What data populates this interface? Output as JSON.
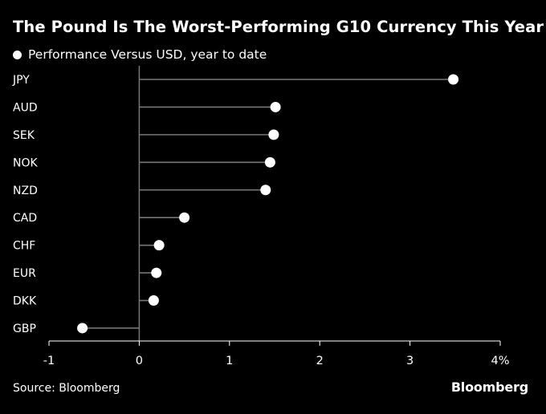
{
  "title": "The Pound Is The Worst-Performing G10 Currency This Year",
  "legend_label": "Performance Versus USD, year to date",
  "source": "Source: Bloomberg",
  "brand": "Bloomberg",
  "colors": {
    "background": "#000000",
    "foreground": "#ffffff",
    "stem": "#777777"
  },
  "chart_data": {
    "type": "lollipop",
    "series": [
      {
        "name": "Performance Versus USD, year to date"
      }
    ],
    "categories": [
      "JPY",
      "AUD",
      "SEK",
      "NOK",
      "NZD",
      "CAD",
      "CHF",
      "EUR",
      "DKK",
      "GBP"
    ],
    "values": [
      3.48,
      1.51,
      1.49,
      1.45,
      1.4,
      0.5,
      0.22,
      0.19,
      0.16,
      -0.63
    ],
    "xlim": [
      -1,
      4
    ],
    "xticks": [
      {
        "value": -1,
        "label": "-1"
      },
      {
        "value": 0,
        "label": "0"
      },
      {
        "value": 1,
        "label": "1"
      },
      {
        "value": 2,
        "label": "2"
      },
      {
        "value": 3,
        "label": "3"
      },
      {
        "value": 4,
        "label": "4%"
      }
    ],
    "grid": false
  }
}
